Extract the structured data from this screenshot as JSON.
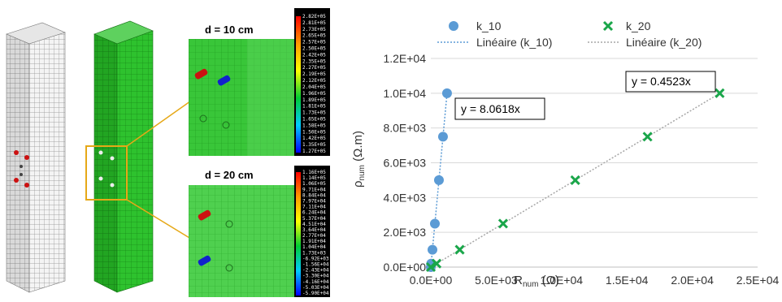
{
  "figure": {
    "panel_top_label": "d = 10 cm",
    "panel_bottom_label": "d = 20 cm",
    "scale_top": [
      "2.82E+05",
      "2.81E+05",
      "2.73E+05",
      "2.65E+05",
      "2.57E+05",
      "2.50E+05",
      "2.42E+05",
      "2.35E+05",
      "2.27E+05",
      "2.19E+05",
      "2.12E+05",
      "2.04E+05",
      "1.96E+05",
      "1.89E+05",
      "1.81E+05",
      "1.73E+05",
      "1.65E+05",
      "1.58E+05",
      "1.50E+05",
      "1.42E+05",
      "1.35E+05",
      "1.27E+05"
    ],
    "scale_bottom": [
      "1.16E+05",
      "1.14E+05",
      "1.06E+05",
      "9.71E+04",
      "8.84E+04",
      "7.97E+04",
      "7.11E+04",
      "6.24E+04",
      "5.37E+04",
      "4.51E+04",
      "3.64E+04",
      "2.77E+04",
      "1.91E+04",
      "1.04E+04",
      "1.73E+03",
      "-6.92E+03",
      "-1.56E+04",
      "-2.43E+04",
      "-3.30E+04",
      "-4.16E+04",
      "-5.03E+04",
      "-5.90E+04"
    ],
    "colors": {
      "mesh_green": "#2ec22e",
      "callout": "#e6a817"
    }
  },
  "chart_data": {
    "type": "scatter",
    "xlabel_main": "R",
    "xlabel_sub": "num",
    "xlabel_unit": " (Ω)",
    "ylabel_main": "ρ",
    "ylabel_sub": "num",
    "ylabel_unit": " (Ω.m)",
    "xlim": [
      0,
      25000
    ],
    "ylim": [
      0,
      12000
    ],
    "x_ticks": [
      "0.0E+00",
      "5.0E+03",
      "1.0E+04",
      "1.5E+04",
      "2.0E+04",
      "2.5E+04"
    ],
    "x_tick_values": [
      0,
      5000,
      10000,
      15000,
      20000,
      25000
    ],
    "y_ticks": [
      "0.0E+00",
      "2.0E+03",
      "4.0E+03",
      "6.0E+03",
      "8.0E+03",
      "1.0E+04",
      "1.2E+04"
    ],
    "y_tick_values": [
      0,
      2000,
      4000,
      6000,
      8000,
      10000,
      12000
    ],
    "grid": "horizontal",
    "legend_position": "top",
    "series": [
      {
        "name": "k_10",
        "marker": "circle",
        "color": "#5b9bd5",
        "points": [
          [
            0,
            0
          ],
          [
            25,
            200
          ],
          [
            124,
            1000
          ],
          [
            310,
            2500
          ],
          [
            620,
            5000
          ],
          [
            930,
            7500
          ],
          [
            1240,
            10000
          ]
        ]
      },
      {
        "name": "k_20",
        "marker": "x",
        "color": "#1aa64a",
        "points": [
          [
            0,
            0
          ],
          [
            440,
            200
          ],
          [
            2210,
            1000
          ],
          [
            5530,
            2500
          ],
          [
            11050,
            5000
          ],
          [
            16580,
            7500
          ],
          [
            22100,
            10000
          ]
        ]
      }
    ],
    "trendlines": [
      {
        "name": "Linéaire (k_10)",
        "color": "#5b9bd5",
        "slope": 8.0618,
        "x_end": 1240,
        "equation": "y = 8.0618x"
      },
      {
        "name": "Linéaire (k_20)",
        "color": "#a6a6a6",
        "slope": 0.4523,
        "x_end": 22100,
        "equation": "y = 0.4523x"
      }
    ]
  }
}
